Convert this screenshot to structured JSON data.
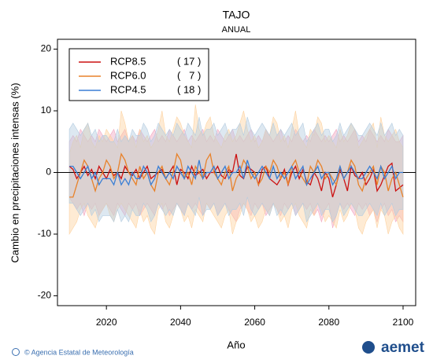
{
  "chart_data": {
    "type": "line",
    "title": "TAJO",
    "subtitle": "ANUAL",
    "x_label": "Año",
    "y_label": "Cambio en precipitaciones intensas (%)",
    "footer": "© Agencia Estatal de Meteorología",
    "logo": "aemet",
    "xlim": [
      2006.8,
      2103.4
    ],
    "ylim": [
      -21.6,
      21.6
    ],
    "xticks": [
      2020,
      2040,
      2060,
      2080,
      2100
    ],
    "yticks": [
      -20,
      -10,
      0,
      10,
      20
    ],
    "reference_line": 0,
    "legend": "upper left",
    "x": [
      2010,
      2011,
      2012,
      2013,
      2014,
      2015,
      2016,
      2017,
      2018,
      2019,
      2020,
      2021,
      2022,
      2023,
      2024,
      2025,
      2026,
      2027,
      2028,
      2029,
      2030,
      2031,
      2032,
      2033,
      2034,
      2035,
      2036,
      2037,
      2038,
      2039,
      2040,
      2041,
      2042,
      2043,
      2044,
      2045,
      2046,
      2047,
      2048,
      2049,
      2050,
      2051,
      2052,
      2053,
      2054,
      2055,
      2056,
      2057,
      2058,
      2059,
      2060,
      2061,
      2062,
      2063,
      2064,
      2065,
      2066,
      2067,
      2068,
      2069,
      2070,
      2071,
      2072,
      2073,
      2074,
      2075,
      2076,
      2077,
      2078,
      2079,
      2080,
      2081,
      2082,
      2083,
      2084,
      2085,
      2086,
      2087,
      2088,
      2089,
      2090,
      2091,
      2092,
      2093,
      2094,
      2095,
      2096,
      2097,
      2098,
      2099,
      2100
    ],
    "series": [
      {
        "name": "RCP8.5",
        "models": "( 17 )",
        "color": "#cc1111",
        "band_color": "#f2a7c0",
        "values": [
          1,
          0.5,
          -1,
          0,
          1,
          -0.5,
          0.5,
          -1,
          1,
          0,
          -1,
          0.5,
          -0.5,
          0,
          -1,
          1,
          0,
          -0.5,
          0.5,
          -1,
          0,
          1,
          -1,
          -0.5,
          0,
          0.5,
          -1,
          0,
          1,
          -2,
          0.5,
          0,
          -1,
          1,
          -0.5,
          0,
          0.5,
          -1,
          0,
          0,
          1,
          -0.5,
          -1,
          0.5,
          0,
          3,
          -0.5,
          -1,
          1,
          0.5,
          0,
          -2,
          0.5,
          1,
          -1,
          -1.5,
          -2,
          -1,
          0.5,
          -2,
          0,
          1,
          -1,
          0.5,
          -1.5,
          -2,
          0,
          -1,
          -3,
          0,
          -1,
          -4,
          -2,
          0.5,
          -1,
          -3,
          1,
          -0.5,
          -1,
          0,
          -2,
          -1,
          0.5,
          -3,
          -2,
          -0.5,
          1,
          1.5,
          -3,
          -2.5,
          -2
        ],
        "upper": [
          5,
          6,
          5,
          7,
          6,
          5,
          6,
          5,
          7,
          6,
          5,
          6,
          7,
          5,
          6,
          7,
          5,
          6,
          5,
          7,
          6,
          5,
          6,
          7,
          5,
          6,
          5,
          7,
          6,
          5,
          6,
          7,
          5,
          6,
          5,
          6,
          7,
          5,
          6,
          5,
          7,
          6,
          5,
          6,
          7,
          5,
          6,
          5,
          6,
          7,
          5,
          6,
          5,
          7,
          6,
          5,
          6,
          7,
          5,
          6,
          5,
          7,
          6,
          5,
          6,
          5,
          7,
          6,
          5,
          6,
          5,
          6,
          7,
          5,
          6,
          5,
          6,
          7,
          5,
          6,
          5,
          7,
          6,
          5,
          6,
          5,
          7,
          6,
          5,
          5,
          6
        ],
        "lower": [
          -4,
          -5,
          -6,
          -5,
          -7,
          -5,
          -6,
          -5,
          -7,
          -6,
          -5,
          -6,
          -7,
          -5,
          -6,
          -7,
          -5,
          -6,
          -5,
          -7,
          -6,
          -5,
          -6,
          -7,
          -5,
          -6,
          -5,
          -7,
          -6,
          -5,
          -6,
          -7,
          -5,
          -6,
          -5,
          -6,
          -7,
          -5,
          -6,
          -5,
          -7,
          -6,
          -5,
          -6,
          -7,
          -8,
          -6,
          -5,
          -6,
          -7,
          -5,
          -6,
          -5,
          -7,
          -6,
          -5,
          -6,
          -7,
          -5,
          -6,
          -5,
          -7,
          -6,
          -5,
          -6,
          -5,
          -7,
          -6,
          -8,
          -6,
          -5,
          -9,
          -7,
          -5,
          -6,
          -5,
          -6,
          -7,
          -5,
          -6,
          -5,
          -7,
          -6,
          -8,
          -6,
          -5,
          -7,
          -6,
          -8,
          -7,
          -8
        ]
      },
      {
        "name": "RCP6.0",
        "models": "(   7 )",
        "color": "#e8822a",
        "band_color": "#fdd2a0",
        "values": [
          -4,
          -4,
          -2,
          0,
          2,
          1,
          -1,
          -3,
          -1,
          0,
          2,
          1,
          -1,
          0,
          3,
          2,
          0,
          -1,
          -2,
          1,
          -1,
          0,
          -2,
          -3,
          0,
          1,
          -1,
          -2,
          0,
          3,
          2,
          -1,
          0,
          -2,
          1,
          0,
          -1,
          2,
          3,
          0,
          -1,
          -2,
          0,
          1,
          -3,
          -1,
          0,
          2,
          1,
          -1,
          0,
          -2,
          -1,
          1,
          0,
          2,
          1,
          -1,
          0,
          -2,
          1,
          2,
          0,
          -1,
          -2,
          1,
          0,
          2,
          1,
          -1,
          0,
          -1,
          -2,
          1,
          -1,
          0,
          2,
          1,
          -2,
          -3,
          -1,
          0,
          1,
          -2,
          1,
          0,
          -3,
          -1,
          0,
          -2,
          -4
        ],
        "upper": [
          3,
          5,
          6,
          4,
          7,
          8,
          5,
          4,
          6,
          5,
          7,
          6,
          5,
          4,
          10,
          8,
          5,
          6,
          4,
          7,
          5,
          6,
          4,
          5,
          7,
          10,
          6,
          5,
          7,
          9,
          8,
          6,
          5,
          4,
          11,
          7,
          6,
          8,
          9,
          6,
          5,
          4,
          6,
          7,
          5,
          6,
          8,
          10,
          7,
          5,
          6,
          4,
          5,
          7,
          6,
          9,
          8,
          5,
          6,
          4,
          7,
          10,
          6,
          5,
          4,
          7,
          6,
          9,
          8,
          5,
          6,
          5,
          4,
          7,
          5,
          6,
          8,
          7,
          4,
          5,
          6,
          7,
          8,
          4,
          9,
          6,
          5,
          6,
          7,
          5,
          4
        ],
        "lower": [
          -10,
          -9,
          -8,
          -6,
          -5,
          -7,
          -8,
          -9,
          -7,
          -6,
          -5,
          -7,
          -8,
          -6,
          -5,
          -6,
          -7,
          -8,
          -9,
          -6,
          -8,
          -7,
          -9,
          -10,
          -6,
          -5,
          -8,
          -9,
          -7,
          -5,
          -6,
          -8,
          -7,
          -9,
          -6,
          -7,
          -8,
          -5,
          -6,
          -7,
          -8,
          -9,
          -7,
          -6,
          -10,
          -8,
          -7,
          -5,
          -6,
          -8,
          -7,
          -9,
          -8,
          -6,
          -7,
          -5,
          -6,
          -8,
          -7,
          -9,
          -6,
          -5,
          -7,
          -8,
          -9,
          -6,
          -7,
          -5,
          -6,
          -8,
          -7,
          -8,
          -9,
          -6,
          -8,
          -7,
          -5,
          -6,
          -9,
          -10,
          -8,
          -7,
          -6,
          -9,
          -6,
          -7,
          -10,
          -8,
          -7,
          -9,
          -10
        ]
      },
      {
        "name": "RCP4.5",
        "models": "( 18 )",
        "color": "#3a7fd5",
        "band_color": "#b4cce0",
        "values": [
          1,
          1,
          0,
          -1,
          0,
          1,
          -1,
          0,
          -2,
          -1,
          -1,
          -1,
          -2,
          0,
          -2,
          -1,
          -2,
          0,
          -1,
          -1,
          1,
          0,
          -2,
          -1,
          1,
          0,
          -1,
          0,
          -1,
          1,
          0,
          -1,
          1,
          0,
          -1,
          2,
          -1,
          0,
          0,
          1,
          -1,
          0,
          1,
          -1,
          0,
          0,
          1,
          -1,
          2,
          0,
          -1,
          0,
          1,
          0,
          -1,
          1,
          -1,
          0,
          -1,
          0,
          1,
          -1,
          0,
          1,
          -2,
          -1,
          0,
          1,
          -1,
          0,
          0,
          -2,
          -1,
          1,
          -1,
          0,
          1,
          0,
          -1,
          -1,
          0,
          1,
          0,
          -1,
          1,
          -1,
          0,
          1,
          -1,
          0,
          0
        ],
        "upper": [
          7,
          8,
          7,
          6,
          7,
          8,
          6,
          7,
          5,
          6,
          6,
          5,
          5,
          7,
          5,
          6,
          5,
          7,
          6,
          6,
          8,
          7,
          5,
          6,
          8,
          7,
          6,
          7,
          6,
          8,
          7,
          6,
          8,
          7,
          6,
          9,
          6,
          7,
          7,
          8,
          6,
          7,
          8,
          6,
          7,
          7,
          8,
          6,
          9,
          7,
          6,
          7,
          8,
          7,
          6,
          8,
          6,
          7,
          6,
          7,
          8,
          6,
          7,
          8,
          5,
          6,
          7,
          8,
          6,
          7,
          7,
          5,
          6,
          8,
          6,
          7,
          8,
          7,
          6,
          6,
          7,
          8,
          7,
          6,
          8,
          6,
          7,
          8,
          6,
          7,
          6
        ],
        "lower": [
          -5,
          -5,
          -6,
          -7,
          -6,
          -5,
          -7,
          -6,
          -8,
          -7,
          -7,
          -7,
          -8,
          -6,
          -8,
          -7,
          -8,
          -6,
          -7,
          -7,
          -5,
          -6,
          -8,
          -7,
          -5,
          -6,
          -7,
          -6,
          -7,
          -5,
          -6,
          -7,
          -5,
          -6,
          -7,
          -4,
          -7,
          -6,
          -6,
          -5,
          -7,
          -6,
          -5,
          -7,
          -6,
          -6,
          -5,
          -7,
          -4,
          -6,
          -7,
          -6,
          -5,
          -6,
          -7,
          -5,
          -7,
          -6,
          -7,
          -6,
          -5,
          -7,
          -6,
          -5,
          -8,
          -7,
          -6,
          -5,
          -7,
          -6,
          -6,
          -8,
          -7,
          -5,
          -7,
          -6,
          -5,
          -6,
          -7,
          -7,
          -6,
          -5,
          -6,
          -7,
          -5,
          -7,
          -6,
          -5,
          -7,
          -6,
          -6
        ]
      }
    ]
  }
}
